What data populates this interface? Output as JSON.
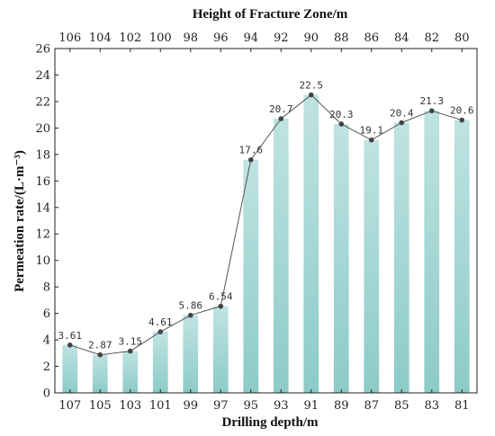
{
  "chart_data": {
    "type": "bar",
    "title": "",
    "xlabel": "Drilling depth/m",
    "x2label": "Height of Fracture Zone/m",
    "ylabel": "Permeation rate/(L·m⁻³)",
    "categories": [
      "107",
      "105",
      "103",
      "101",
      "99",
      "97",
      "95",
      "93",
      "91",
      "89",
      "87",
      "85",
      "83",
      "81"
    ],
    "top_categories": [
      "106",
      "104",
      "102",
      "100",
      "98",
      "96",
      "94",
      "92",
      "90",
      "88",
      "86",
      "84",
      "82",
      "80"
    ],
    "values": [
      3.61,
      2.87,
      3.15,
      4.61,
      5.86,
      6.54,
      17.6,
      20.7,
      22.5,
      20.3,
      19.1,
      20.4,
      21.3,
      20.6
    ],
    "data_labels": [
      "3.61",
      "2.87",
      "3.15",
      "4.61",
      "5.86",
      "6.54",
      "17.6",
      "20.7",
      "22.5",
      "20.3",
      "19.1",
      "20.4",
      "21.3",
      "20.6"
    ],
    "line_overlay": true,
    "ylim": [
      0,
      26
    ],
    "yticks": [
      0,
      2,
      4,
      6,
      8,
      10,
      12,
      14,
      16,
      18,
      20,
      22,
      24,
      26
    ],
    "grid": false,
    "legend": "none",
    "colors": {
      "bar_top": "#bfe3e1",
      "bar_bottom": "#8ccbc8",
      "line": "#555555",
      "marker": "#444444"
    }
  }
}
